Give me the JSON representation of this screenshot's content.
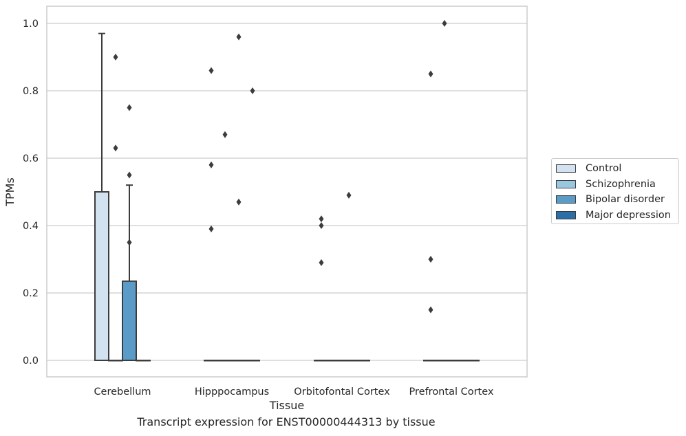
{
  "chart_data": {
    "type": "box",
    "caption": "Transcript expression for ENST00000444313 by tissue",
    "xlabel": "Tissue",
    "ylabel": "TPMs",
    "ylim": [
      -0.05,
      1.05
    ],
    "yticks": [
      0.0,
      0.2,
      0.4,
      0.6,
      0.8,
      1.0
    ],
    "ytick_labels": [
      "0.0",
      "0.2",
      "0.4",
      "0.6",
      "0.8",
      "1.0"
    ],
    "grid": "horizontal",
    "legend_position": "right",
    "categories": [
      "Cerebellum",
      "Hipppocampus",
      "Orbitofontal Cortex",
      "Prefrontal Cortex"
    ],
    "series": [
      {
        "name": "Control",
        "color": "#d2e2f0",
        "boxes": [
          {
            "q1": 0.0,
            "median": 0.0,
            "q3": 0.5,
            "whisker_low": 0.0,
            "whisker_high": 0.97,
            "outliers": []
          },
          {
            "q1": 0.0,
            "median": 0.0,
            "q3": 0.0,
            "whisker_low": 0.0,
            "whisker_high": 0.0,
            "outliers": [
              0.86,
              0.58,
              0.39
            ]
          },
          {
            "q1": 0.0,
            "median": 0.0,
            "q3": 0.0,
            "whisker_low": 0.0,
            "whisker_high": 0.0,
            "outliers": [
              0.42,
              0.4,
              0.29
            ]
          },
          {
            "q1": 0.0,
            "median": 0.0,
            "q3": 0.0,
            "whisker_low": 0.0,
            "whisker_high": 0.0,
            "outliers": [
              0.85,
              0.3,
              0.15
            ]
          }
        ]
      },
      {
        "name": "Schizophrenia",
        "color": "#9ac7e0",
        "boxes": [
          {
            "q1": 0.0,
            "median": 0.0,
            "q3": 0.0,
            "whisker_low": 0.0,
            "whisker_high": 0.0,
            "outliers": [
              0.9,
              0.63
            ]
          },
          {
            "q1": 0.0,
            "median": 0.0,
            "q3": 0.0,
            "whisker_low": 0.0,
            "whisker_high": 0.0,
            "outliers": [
              0.67
            ]
          },
          {
            "q1": 0.0,
            "median": 0.0,
            "q3": 0.0,
            "whisker_low": 0.0,
            "whisker_high": 0.0,
            "outliers": []
          },
          {
            "q1": 0.0,
            "median": 0.0,
            "q3": 0.0,
            "whisker_low": 0.0,
            "whisker_high": 0.0,
            "outliers": [
              1.0
            ]
          }
        ]
      },
      {
        "name": "Bipolar disorder",
        "color": "#5a9bc8",
        "boxes": [
          {
            "q1": 0.0,
            "median": 0.0,
            "q3": 0.235,
            "whisker_low": 0.0,
            "whisker_high": 0.52,
            "outliers": [
              0.75,
              0.55,
              0.35
            ]
          },
          {
            "q1": 0.0,
            "median": 0.0,
            "q3": 0.0,
            "whisker_low": 0.0,
            "whisker_high": 0.0,
            "outliers": [
              0.96,
              0.47
            ]
          },
          {
            "q1": 0.0,
            "median": 0.0,
            "q3": 0.0,
            "whisker_low": 0.0,
            "whisker_high": 0.0,
            "outliers": [
              0.49
            ]
          },
          {
            "q1": 0.0,
            "median": 0.0,
            "q3": 0.0,
            "whisker_low": 0.0,
            "whisker_high": 0.0,
            "outliers": []
          }
        ]
      },
      {
        "name": "Major depression",
        "color": "#2c6ea7",
        "boxes": [
          {
            "q1": 0.0,
            "median": 0.0,
            "q3": 0.0,
            "whisker_low": 0.0,
            "whisker_high": 0.0,
            "outliers": []
          },
          {
            "q1": 0.0,
            "median": 0.0,
            "q3": 0.0,
            "whisker_low": 0.0,
            "whisker_high": 0.0,
            "outliers": [
              0.8
            ]
          },
          {
            "q1": 0.0,
            "median": 0.0,
            "q3": 0.0,
            "whisker_low": 0.0,
            "whisker_high": 0.0,
            "outliers": []
          },
          {
            "q1": 0.0,
            "median": 0.0,
            "q3": 0.0,
            "whisker_low": 0.0,
            "whisker_high": 0.0,
            "outliers": []
          }
        ]
      }
    ],
    "style": {
      "grid_color": "#cccccc",
      "box_edge_color": "#3c3c3c",
      "outlier_color": "#3c3c3c",
      "frame_color": "#cccccc"
    }
  }
}
